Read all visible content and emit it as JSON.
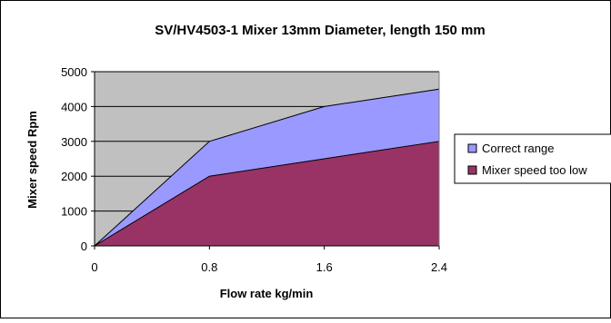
{
  "chart_data": {
    "type": "area",
    "title": "SV/HV4503-1 Mixer 13mm Diameter, length 150 mm",
    "xlabel": "Flow rate kg/min",
    "ylabel": "Mixer speed Rpm",
    "x": [
      0,
      0.8,
      1.6,
      2.4
    ],
    "x_tick_labels": [
      "0",
      "0.8",
      "1.6",
      "2.4"
    ],
    "y_tick_labels": [
      "0",
      "1000",
      "2000",
      "3000",
      "4000",
      "5000"
    ],
    "ylim": [
      0,
      5000
    ],
    "grid": true,
    "legend_position": "right",
    "series": [
      {
        "name": "Correct range",
        "values": [
          0,
          3000,
          4000,
          4500
        ],
        "color": "#9999ff"
      },
      {
        "name": "Mixer speed too low",
        "values": [
          0,
          2000,
          2500,
          3000
        ],
        "color": "#993366"
      }
    ],
    "colors": {
      "plot_background": "#c0c0c0",
      "gridline": "#000000",
      "frame": "#000000"
    }
  }
}
